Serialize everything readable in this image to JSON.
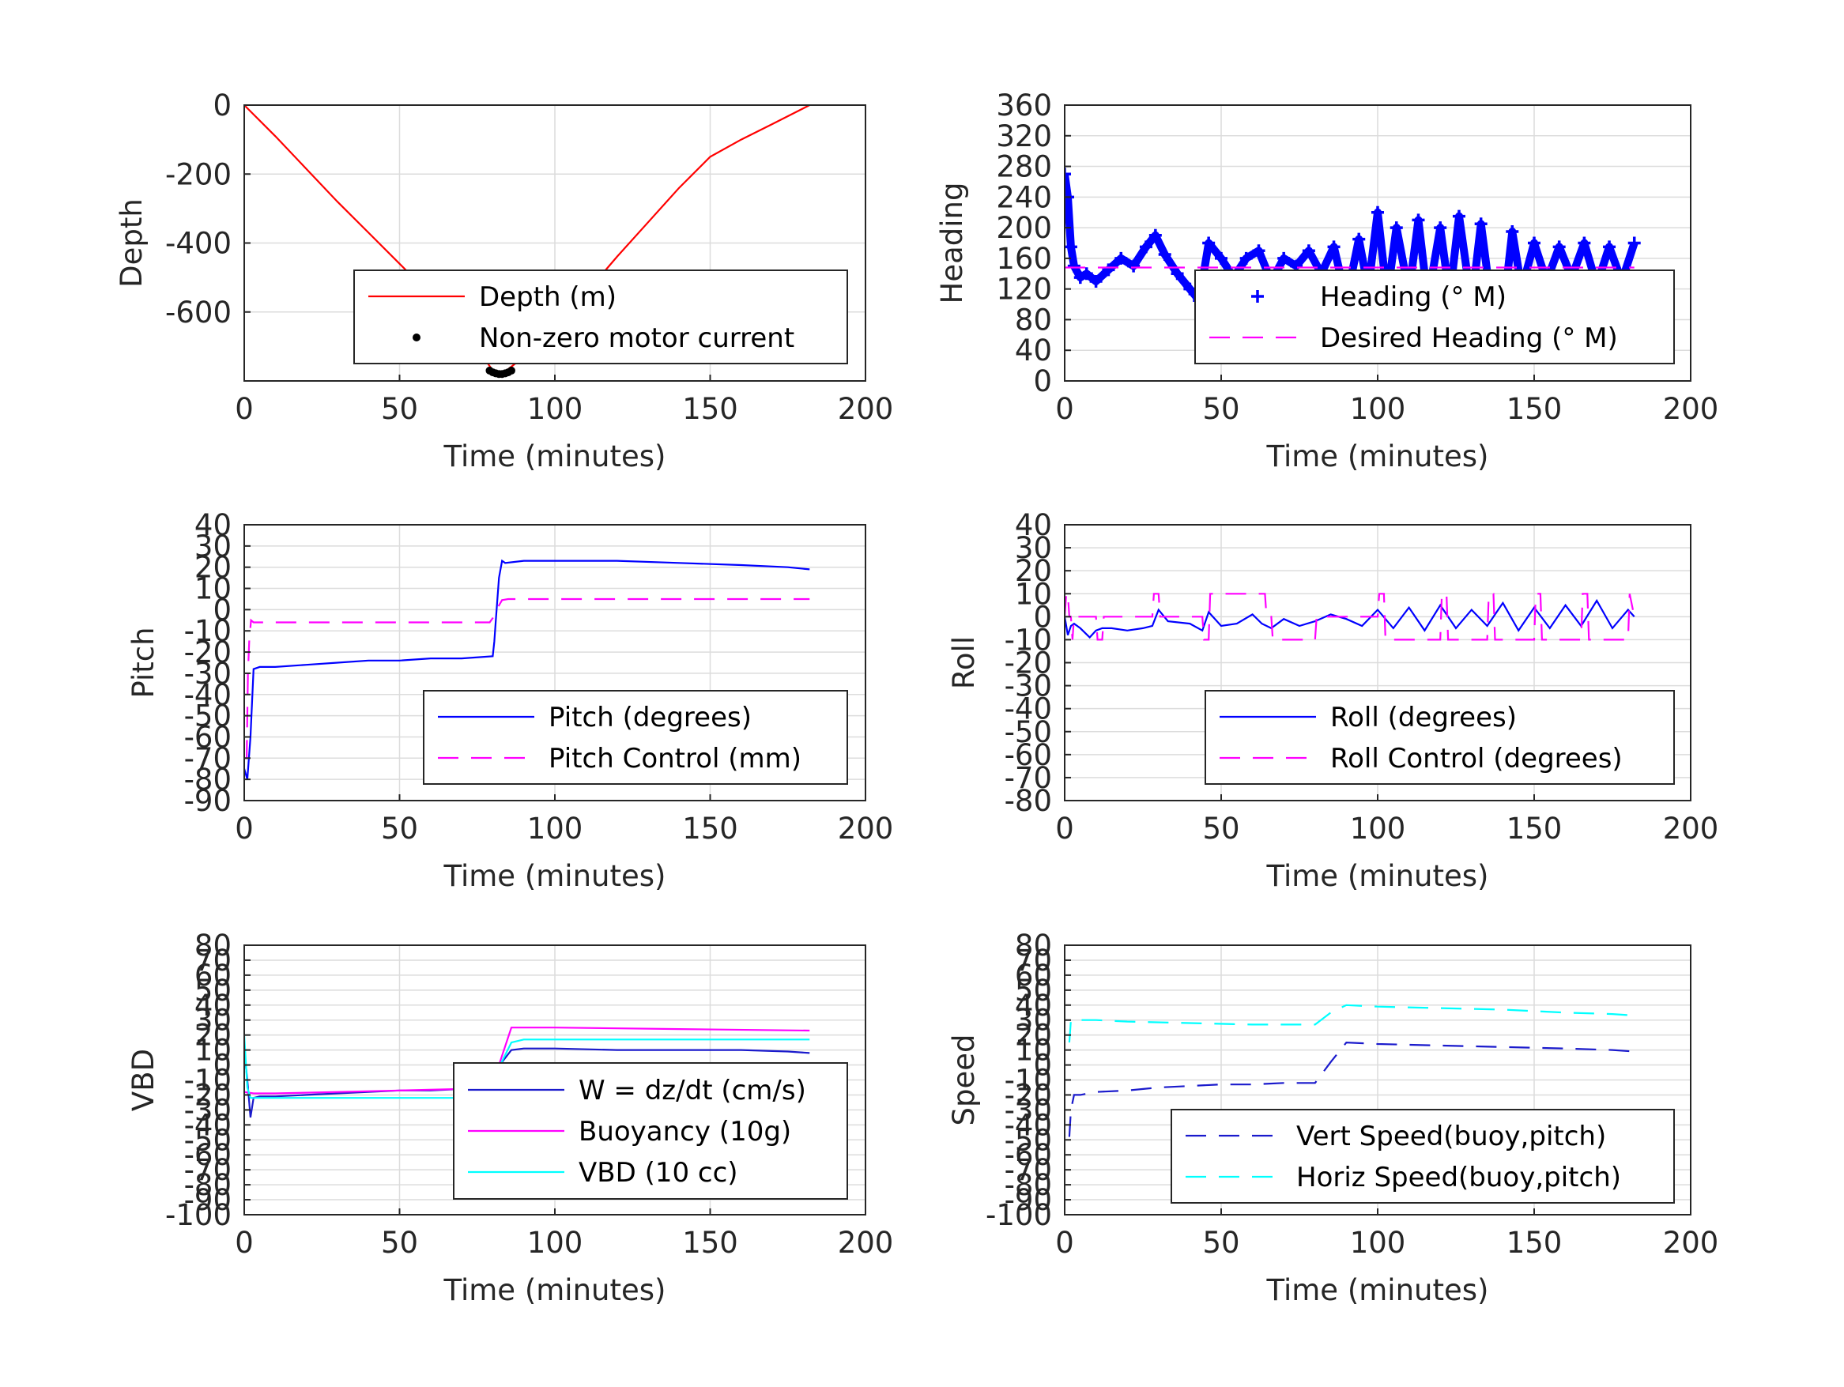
{
  "colors": {
    "red": "#ff0000",
    "blue": "#0000ff",
    "magenta": "#ff00ff",
    "cyan": "#00ffff",
    "black": "#000000",
    "darkblue": "#1a1acc"
  },
  "chart_data": [
    {
      "id": "depth",
      "type": "line",
      "xlabel": "Time (minutes)",
      "ylabel": "Depth",
      "xlim": [
        0,
        200
      ],
      "ylim": [
        -800,
        0
      ],
      "xticks": [
        0,
        50,
        100,
        150,
        200
      ],
      "yticks": [
        0,
        -200,
        -400,
        -600
      ],
      "grid": true,
      "legend_position": "bottom-right",
      "series": [
        {
          "name": "Depth (m)",
          "style": "line",
          "color": "red",
          "x": [
            0,
            10,
            20,
            30,
            40,
            50,
            60,
            70,
            80,
            83,
            90,
            100,
            110,
            120,
            130,
            140,
            150,
            160,
            170,
            182
          ],
          "y": [
            0,
            -90,
            -185,
            -280,
            -370,
            -460,
            -550,
            -640,
            -770,
            -780,
            -730,
            -640,
            -545,
            -440,
            -340,
            -240,
            -150,
            -100,
            -55,
            0
          ]
        },
        {
          "name": "Non-zero motor current",
          "style": "dot",
          "color": "black",
          "x": [
            79,
            80,
            81,
            82,
            83,
            84,
            85,
            86
          ],
          "y": [
            -770,
            -775,
            -778,
            -780,
            -780,
            -778,
            -775,
            -770
          ]
        }
      ]
    },
    {
      "id": "heading",
      "type": "scatter",
      "xlabel": "Time (minutes)",
      "ylabel": "Heading",
      "xlim": [
        0,
        200
      ],
      "ylim": [
        0,
        360
      ],
      "xticks": [
        0,
        50,
        100,
        150,
        200
      ],
      "yticks": [
        0,
        40,
        80,
        120,
        160,
        200,
        240,
        280,
        320,
        360
      ],
      "grid": true,
      "legend_position": "bottom-right",
      "series": [
        {
          "name": "Heading (° M)",
          "style": "plus",
          "color": "blue",
          "x": [
            0,
            1,
            2,
            3,
            5,
            7,
            10,
            14,
            18,
            22,
            26,
            29,
            32,
            36,
            40,
            43,
            46,
            50,
            54,
            58,
            62,
            66,
            70,
            74,
            78,
            82,
            86,
            90,
            94,
            97,
            100,
            103,
            106,
            110,
            113,
            116,
            120,
            123,
            126,
            130,
            133,
            136,
            140,
            143,
            146,
            150,
            154,
            158,
            162,
            166,
            170,
            174,
            178,
            182
          ],
          "y": [
            270,
            240,
            175,
            150,
            135,
            140,
            130,
            145,
            160,
            150,
            175,
            190,
            165,
            140,
            120,
            105,
            180,
            160,
            135,
            160,
            170,
            130,
            160,
            150,
            170,
            140,
            175,
            105,
            185,
            120,
            220,
            110,
            200,
            115,
            210,
            105,
            200,
            110,
            215,
            100,
            205,
            110,
            85,
            195,
            120,
            180,
            130,
            175,
            135,
            180,
            125,
            175,
            130,
            180
          ]
        },
        {
          "name": "Desired Heading (° M)",
          "style": "dashed",
          "color": "magenta",
          "x": [
            0,
            182
          ],
          "y": [
            148,
            148
          ]
        }
      ]
    },
    {
      "id": "pitch",
      "type": "line",
      "xlabel": "Time (minutes)",
      "ylabel": "Pitch",
      "xlim": [
        0,
        200
      ],
      "ylim": [
        -90,
        40
      ],
      "xticks": [
        0,
        50,
        100,
        150,
        200
      ],
      "yticks": [
        -90,
        -80,
        -70,
        -60,
        -50,
        -40,
        -30,
        -20,
        -10,
        0,
        10,
        20,
        30,
        40
      ],
      "grid": true,
      "legend_position": "bottom-right",
      "series": [
        {
          "name": "Pitch (degrees)",
          "style": "line",
          "color": "blue",
          "x": [
            0,
            1,
            2,
            3,
            5,
            10,
            20,
            30,
            40,
            50,
            60,
            70,
            80,
            80.5,
            81,
            82,
            83,
            84,
            90,
            100,
            120,
            140,
            160,
            175,
            182
          ],
          "y": [
            -75,
            -80,
            -60,
            -28,
            -27,
            -27,
            -26,
            -25,
            -24,
            -24,
            -23,
            -23,
            -22,
            -15,
            -5,
            15,
            23,
            22,
            23,
            23,
            23,
            22,
            21,
            20,
            19
          ]
        },
        {
          "name": "Pitch Control (mm)",
          "style": "dashed",
          "color": "magenta",
          "x": [
            0,
            0.8,
            1.2,
            1.6,
            2.2,
            3,
            20,
            40,
            60,
            79,
            80,
            82,
            83,
            85,
            100,
            140,
            182
          ],
          "y": [
            -70,
            -70,
            -30,
            -15,
            -5,
            -6,
            -6,
            -6,
            -6,
            -6,
            -4,
            2,
            4.5,
            5,
            5,
            5,
            5
          ]
        }
      ]
    },
    {
      "id": "roll",
      "type": "line",
      "xlabel": "Time (minutes)",
      "ylabel": "Roll",
      "xlim": [
        0,
        200
      ],
      "ylim": [
        -80,
        40
      ],
      "xticks": [
        0,
        50,
        100,
        150,
        200
      ],
      "yticks": [
        -80,
        -70,
        -60,
        -50,
        -40,
        -30,
        -20,
        -10,
        0,
        10,
        20,
        30,
        40
      ],
      "grid": true,
      "legend_position": "bottom-right",
      "series": [
        {
          "name": "Roll (degrees)",
          "style": "line",
          "color": "blue",
          "x": [
            0,
            1,
            2,
            3,
            5,
            8,
            10,
            12,
            15,
            20,
            25,
            28,
            30,
            33,
            40,
            44,
            46,
            50,
            55,
            60,
            63,
            66,
            70,
            75,
            80,
            85,
            90,
            95,
            100,
            105,
            110,
            115,
            120,
            125,
            130,
            135,
            140,
            145,
            150,
            155,
            160,
            165,
            170,
            175,
            180,
            182
          ],
          "y": [
            0,
            -8,
            -4,
            -3,
            -5,
            -9,
            -6,
            -5,
            -5,
            -6,
            -5,
            -4,
            3,
            -2,
            -3,
            -6,
            2,
            -4,
            -3,
            1,
            -3,
            -5,
            -1,
            -4,
            -2,
            1,
            -1,
            -4,
            3,
            -5,
            4,
            -6,
            5,
            -5,
            3,
            -4,
            6,
            -6,
            4,
            -5,
            5,
            -4,
            7,
            -5,
            3,
            0
          ]
        },
        {
          "name": "Roll Control (degrees)",
          "style": "dashed",
          "color": "magenta",
          "x": [
            0,
            0.5,
            1,
            1.5,
            2,
            2.5,
            3,
            10,
            10.5,
            12,
            12.5,
            28,
            28.5,
            30,
            30.5,
            44,
            44.5,
            46,
            46.5,
            64,
            64.5,
            66,
            66.5,
            80,
            80.5,
            100,
            100.5,
            102,
            102.5,
            120,
            120.5,
            122,
            122.5,
            135,
            135.5,
            137,
            137.5,
            150,
            150.5,
            152,
            152.5,
            165,
            165.5,
            167,
            167.5,
            180,
            180.5,
            182
          ],
          "y": [
            0,
            10,
            10,
            0,
            0,
            -10,
            0,
            0,
            -10,
            -10,
            0,
            0,
            10,
            10,
            0,
            0,
            -10,
            -10,
            10,
            10,
            0,
            0,
            -10,
            -10,
            0,
            0,
            10,
            10,
            -10,
            -10,
            10,
            10,
            -10,
            -10,
            10,
            10,
            -10,
            -10,
            10,
            10,
            -10,
            -10,
            10,
            10,
            -10,
            -10,
            10,
            0
          ]
        }
      ]
    },
    {
      "id": "vbd",
      "type": "line",
      "xlabel": "Time (minutes)",
      "ylabel": "VBD",
      "xlim": [
        0,
        200
      ],
      "ylim": [
        -100,
        80
      ],
      "xticks": [
        0,
        50,
        100,
        150,
        200
      ],
      "yticks": [
        -100,
        -90,
        -80,
        -70,
        -60,
        -50,
        -40,
        -30,
        -20,
        -10,
        0,
        10,
        20,
        30,
        40,
        50,
        60,
        70,
        80
      ],
      "grid": true,
      "legend_position": "bottom-right",
      "series": [
        {
          "name": "W = dz/dt (cm/s)",
          "style": "line",
          "color": "darkblue",
          "x": [
            0,
            1,
            2,
            3,
            5,
            10,
            20,
            30,
            40,
            50,
            60,
            70,
            78,
            80,
            83,
            86,
            90,
            100,
            120,
            140,
            160,
            175,
            182
          ],
          "y": [
            10,
            -10,
            -35,
            -22,
            -21,
            -21,
            -20,
            -19,
            -18,
            -17,
            -17,
            -16,
            -17,
            -10,
            2,
            10,
            11,
            11,
            10,
            10,
            10,
            9,
            8
          ]
        },
        {
          "name": "Buoyancy (10g)",
          "style": "line",
          "color": "magenta",
          "x": [
            0,
            3,
            10,
            30,
            50,
            70,
            78,
            82,
            86,
            100,
            140,
            182
          ],
          "y": [
            -18,
            -19,
            -19,
            -18,
            -17,
            -16,
            -15,
            0,
            25,
            25,
            24,
            23
          ]
        },
        {
          "name": "VBD (10 cc)",
          "style": "line",
          "color": "cyan",
          "x": [
            0,
            1,
            2,
            3,
            10,
            40,
            78,
            80,
            86,
            90,
            140,
            182
          ],
          "y": [
            20,
            -15,
            -22,
            -22,
            -22,
            -22,
            -22,
            -10,
            15,
            17,
            17,
            17
          ]
        }
      ]
    },
    {
      "id": "speed",
      "type": "line",
      "xlabel": "Time (minutes)",
      "ylabel": "Speed",
      "xlim": [
        0,
        200
      ],
      "ylim": [
        -100,
        80
      ],
      "xticks": [
        0,
        50,
        100,
        150,
        200
      ],
      "yticks": [
        -100,
        -90,
        -80,
        -70,
        -60,
        -50,
        -40,
        -30,
        -20,
        -10,
        0,
        10,
        20,
        30,
        40,
        50,
        60,
        70,
        80
      ],
      "grid": true,
      "legend_position": "bottom-right",
      "series": [
        {
          "name": "Vert Speed(buoy,pitch)",
          "style": "dashed",
          "color": "darkblue",
          "x": [
            1.5,
            2,
            3,
            5,
            10,
            20,
            30,
            40,
            50,
            60,
            70,
            78,
            80,
            85,
            90,
            100,
            120,
            140,
            160,
            175,
            182
          ],
          "y": [
            -48,
            -30,
            -20,
            -20,
            -18,
            -17,
            -15,
            -14,
            -13,
            -13,
            -12,
            -12,
            -12,
            2,
            15,
            14,
            13,
            12,
            11,
            10,
            9
          ]
        },
        {
          "name": "Horiz Speed(buoy,pitch)",
          "style": "dashed",
          "color": "cyan",
          "x": [
            1.5,
            2,
            3,
            10,
            20,
            40,
            60,
            78,
            80,
            85,
            90,
            100,
            120,
            140,
            160,
            175,
            182
          ],
          "y": [
            15,
            30,
            30,
            30,
            29,
            28,
            27,
            27,
            27,
            35,
            40,
            39,
            38,
            37,
            35,
            34,
            33
          ]
        }
      ]
    }
  ]
}
